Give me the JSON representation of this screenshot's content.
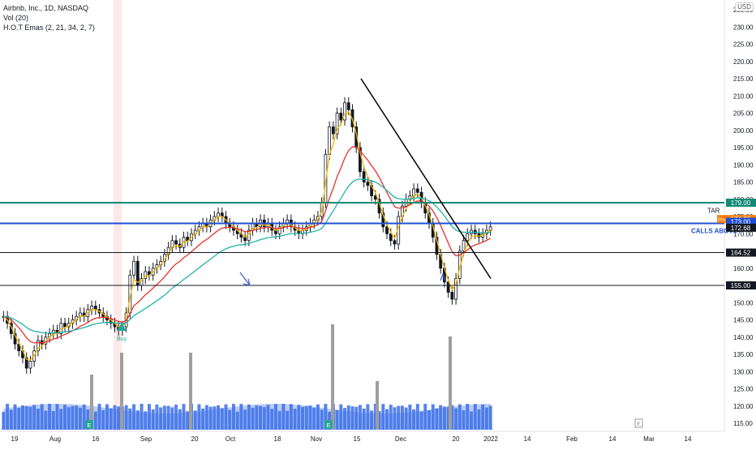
{
  "legend": {
    "title": "Airbnb, Inc., 1D, NASDAQ",
    "vol": "Vol (20)",
    "ema": "H.O.T Emas (2, 21, 34, 2, 7)"
  },
  "currency": "USD",
  "colors": {
    "up": "#131722",
    "down": "#131722",
    "ema_fast": "#f5b700",
    "ema_mid": "#e8312e",
    "ema_slow": "#20b2aa",
    "resistance_teal": "#138a74",
    "calls_blue": "#1f4fd6",
    "trend": "#000000",
    "volume_fill": "#3b6fe8",
    "volume_spike": "#9e9e9e",
    "buy": "#26a69a"
  },
  "labels": {
    "buy": "Buy",
    "calls_above": "CALLS ABOVE",
    "tar": "TAR",
    "pre": "Pre",
    "earnings": "E"
  },
  "price_tags": [
    {
      "text": "179.00",
      "value": 179.0,
      "color": "#138a74"
    },
    {
      "text": "174.25",
      "value": 174.25,
      "color": "#f57c00"
    },
    {
      "text": "173.00",
      "value": 173.0,
      "color": "#1f4fd6"
    },
    {
      "text": "172.68",
      "value": 172.68,
      "color": "#131722"
    },
    {
      "text": "164.52",
      "value": 164.52,
      "color": "#131722"
    },
    {
      "text": "155.00",
      "value": 155.0,
      "color": "#131722"
    }
  ],
  "chart_data": {
    "type": "candlestick",
    "y_ticks": [
      "115.00",
      "120.00",
      "125.00",
      "130.00",
      "135.00",
      "140.00",
      "145.00",
      "150.00",
      "155.00",
      "160.00",
      "165.00",
      "170.00",
      "175.00",
      "180.00",
      "185.00",
      "190.00",
      "195.00",
      "200.00",
      "205.00",
      "210.00",
      "215.00",
      "220.00",
      "225.00",
      "230.00",
      "235.00"
    ],
    "y_tick_values": [
      115,
      120,
      125,
      130,
      135,
      140,
      145,
      150,
      155,
      160,
      165,
      170,
      175,
      180,
      185,
      190,
      195,
      200,
      205,
      210,
      215,
      220,
      225,
      230,
      235
    ],
    "x_ticks": [
      "19",
      "Aug",
      "16",
      "Sep",
      "20",
      "Oct",
      "18",
      "Nov",
      "15",
      "Dec",
      "20",
      "2022",
      "14",
      "Feb",
      "14",
      "Mar",
      "14"
    ],
    "ylim": [
      113,
      237
    ],
    "levels": [
      {
        "value": 179.0,
        "color": "#138a74",
        "label": "179.00"
      },
      {
        "value": 173.0,
        "color": "#1f4fd6",
        "label": "CALLS ABOVE"
      },
      {
        "value": 164.52,
        "color": "#131722",
        "label": "164.52"
      },
      {
        "value": 155.0,
        "color": "#131722",
        "label": "155.00"
      }
    ],
    "trendline": {
      "from": {
        "x": "Nov 11",
        "y": 215
      },
      "to": {
        "x": "Dec 31",
        "y": 157
      }
    },
    "ohlc_close": [
      146,
      144,
      141,
      138,
      136,
      134,
      131,
      133,
      136,
      139,
      138,
      140,
      141,
      142,
      141,
      144,
      143,
      144,
      145,
      146,
      147,
      146,
      148,
      149,
      148,
      147,
      146,
      145,
      144,
      143,
      142,
      143,
      147,
      158,
      162,
      155,
      157,
      159,
      158,
      160,
      161,
      162,
      164,
      166,
      168,
      167,
      166,
      169,
      168,
      170,
      171,
      172,
      173,
      172,
      174,
      175,
      176,
      175,
      173,
      172,
      171,
      170,
      169,
      168,
      171,
      173,
      172,
      174,
      172,
      173,
      171,
      170,
      172,
      173,
      174,
      172,
      171,
      170,
      171,
      172,
      173,
      174,
      175,
      179,
      193,
      201,
      199,
      205,
      203,
      208,
      206,
      201,
      195,
      188,
      185,
      184,
      181,
      180,
      176,
      172,
      170,
      168,
      167,
      175,
      178,
      180,
      181,
      183,
      182,
      179,
      176,
      173,
      169,
      164,
      160,
      156,
      153,
      151,
      157,
      165,
      168,
      170,
      171,
      170,
      169,
      170,
      171,
      172
    ],
    "volume_spikes": [
      {
        "x": "Aug 26",
        "value": "high"
      },
      {
        "x": "Sep 28",
        "value": "high"
      },
      {
        "x": "Nov 10",
        "value": "highest"
      },
      {
        "x": "Dec 20",
        "value": "high"
      }
    ],
    "markers": [
      {
        "type": "buy",
        "label": "Buy",
        "x": "Aug 26"
      },
      {
        "type": "earnings",
        "label": "E",
        "x": "Aug 12"
      },
      {
        "type": "earnings",
        "label": "E",
        "x": "Nov 4"
      }
    ]
  }
}
